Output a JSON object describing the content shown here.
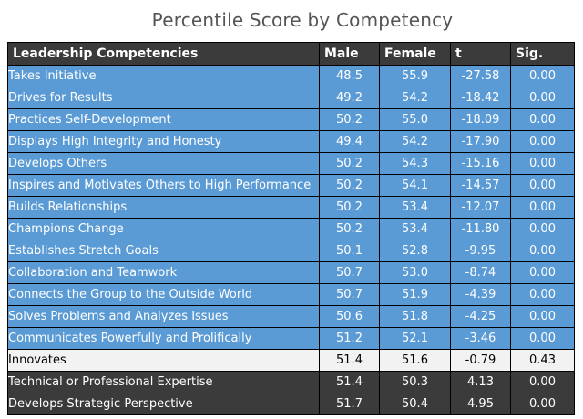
{
  "title": "Percentile Score by Competency",
  "colors": {
    "header_bg": "#3b3b3b",
    "blue_row": "#5b9bd5",
    "light_row": "#f2f2f2",
    "dark_row": "#3b3b3b"
  },
  "chart_data": {
    "type": "table",
    "title": "Percentile Score by Competency",
    "columns": [
      "Leadership Competencies",
      "Male",
      "Female",
      "t",
      "Sig."
    ],
    "rows": [
      {
        "name": "Takes Initiative",
        "male": "48.5",
        "female": "55.9",
        "t": "-27.58",
        "sig": "0.00",
        "style": "blue"
      },
      {
        "name": "Drives for Results",
        "male": "49.2",
        "female": "54.2",
        "t": "-18.42",
        "sig": "0.00",
        "style": "blue"
      },
      {
        "name": "Practices Self-Development",
        "male": "50.2",
        "female": "55.0",
        "t": "-18.09",
        "sig": "0.00",
        "style": "blue"
      },
      {
        "name": "Displays High Integrity and Honesty",
        "male": "49.4",
        "female": "54.2",
        "t": "-17.90",
        "sig": "0.00",
        "style": "blue"
      },
      {
        "name": "Develops Others",
        "male": "50.2",
        "female": "54.3",
        "t": "-15.16",
        "sig": "0.00",
        "style": "blue"
      },
      {
        "name": "Inspires and Motivates Others to High Performance",
        "male": "50.2",
        "female": "54.1",
        "t": "-14.57",
        "sig": "0.00",
        "style": "blue"
      },
      {
        "name": "Builds Relationships",
        "male": "50.2",
        "female": "53.4",
        "t": "-12.07",
        "sig": "0.00",
        "style": "blue"
      },
      {
        "name": "Champions Change",
        "male": "50.2",
        "female": "53.4",
        "t": "-11.80",
        "sig": "0.00",
        "style": "blue"
      },
      {
        "name": "Establishes Stretch Goals",
        "male": "50.1",
        "female": "52.8",
        "t": "-9.95",
        "sig": "0.00",
        "style": "blue"
      },
      {
        "name": "Collaboration and Teamwork",
        "male": "50.7",
        "female": "53.0",
        "t": "-8.74",
        "sig": "0.00",
        "style": "blue"
      },
      {
        "name": "Connects the Group to the Outside World",
        "male": "50.7",
        "female": "51.9",
        "t": "-4.39",
        "sig": "0.00",
        "style": "blue"
      },
      {
        "name": "Solves Problems and Analyzes Issues",
        "male": "50.6",
        "female": "51.8",
        "t": "-4.25",
        "sig": "0.00",
        "style": "blue"
      },
      {
        "name": "Communicates Powerfully and Prolifically",
        "male": "51.2",
        "female": "52.1",
        "t": "-3.46",
        "sig": "0.00",
        "style": "blue"
      },
      {
        "name": "Innovates",
        "male": "51.4",
        "female": "51.6",
        "t": "-0.79",
        "sig": "0.43",
        "style": "light"
      },
      {
        "name": "Technical or Professional Expertise",
        "male": "51.4",
        "female": "50.3",
        "t": "4.13",
        "sig": "0.00",
        "style": "dark"
      },
      {
        "name": "Develops Strategic Perspective",
        "male": "51.7",
        "female": "50.4",
        "t": "4.95",
        "sig": "0.00",
        "style": "dark"
      }
    ]
  }
}
